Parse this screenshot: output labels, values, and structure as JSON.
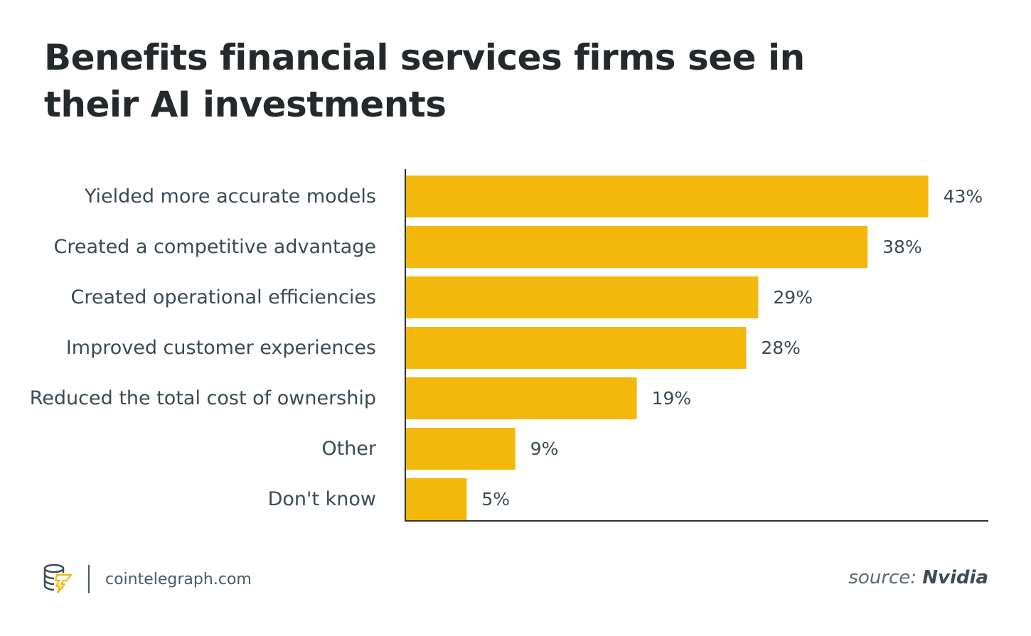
{
  "chart_data": {
    "type": "bar",
    "orientation": "horizontal",
    "title": "Benefits financial services firms see in their AI investments",
    "categories": [
      "Yielded more accurate models",
      "Created a competitive advantage",
      "Created operational efficiencies",
      "Improved customer experiences",
      "Reduced the total cost of ownership",
      "Other",
      "Don't know"
    ],
    "values": [
      43,
      38,
      29,
      28,
      19,
      9,
      5
    ],
    "value_labels": [
      "43%",
      "38%",
      "29%",
      "28%",
      "19%",
      "9%",
      "5%"
    ],
    "unit": "%",
    "xlim": [
      0,
      48
    ],
    "grid": false,
    "legend": "none",
    "xlabel": "",
    "ylabel": ""
  },
  "colors": {
    "bar": "#f4b70c",
    "axis": "#2b3438",
    "title": "#24292b",
    "text": "#3b4a52"
  },
  "footer": {
    "brand_icon": "cointelegraph-logo-icon",
    "brand": "cointelegraph.com",
    "source_prefix": "source:",
    "source_name": "Nvidia"
  }
}
